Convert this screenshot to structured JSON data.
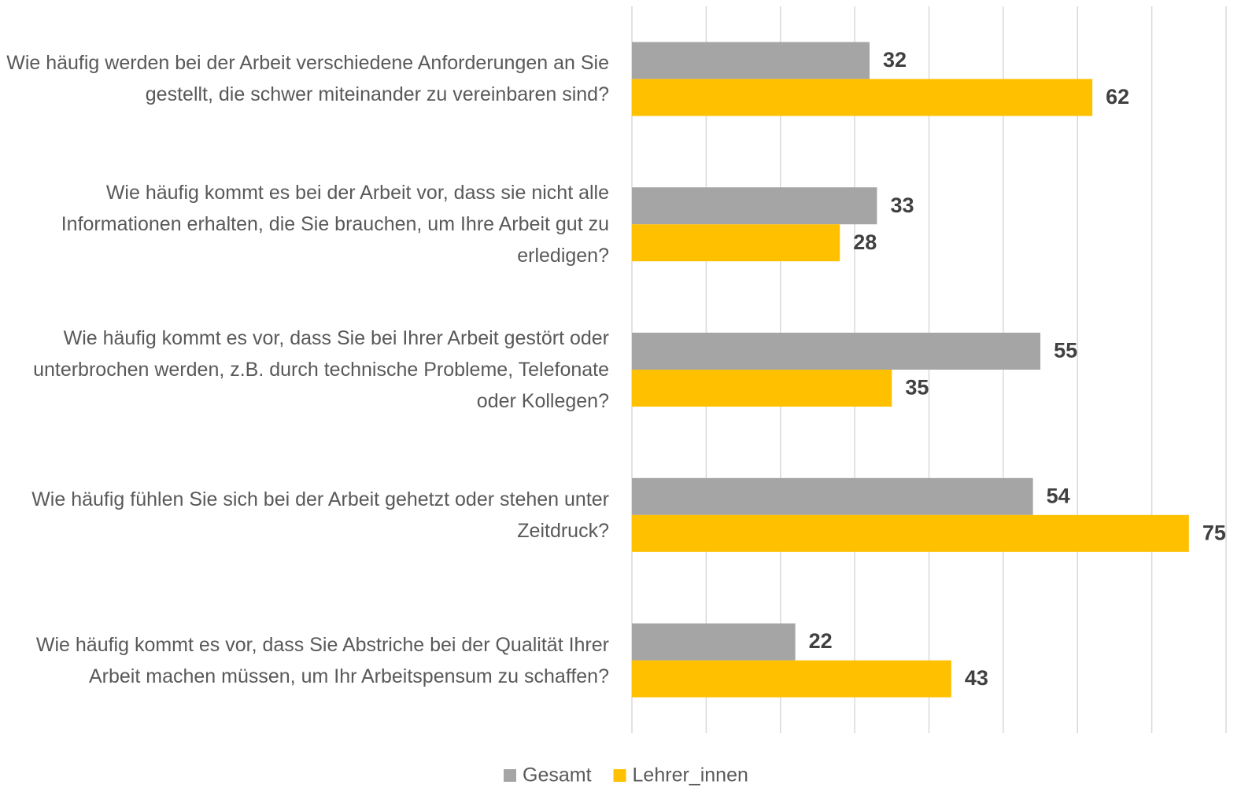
{
  "chart_data": {
    "type": "bar",
    "orientation": "horizontal",
    "categories": [
      "Wie häufig werden bei der Arbeit verschiedene Anforderungen an Sie gestellt, die schwer miteinander zu vereinbaren sind?",
      "Wie häufig kommt es bei der Arbeit vor, dass sie nicht alle Informationen erhalten, die Sie brauchen, um Ihre Arbeit gut zu erledigen?",
      "Wie häufig kommt es vor, dass Sie bei Ihrer Arbeit gestört oder unterbrochen werden, z.B. durch technische Probleme, Telefonate oder Kollegen?",
      "Wie häufig fühlen Sie sich bei der Arbeit gehetzt oder stehen unter Zeitdruck?",
      "Wie häufig kommt es vor, dass Sie Abstriche bei der Qualität Ihrer Arbeit machen müssen, um Ihr Arbeitspensum zu schaffen?"
    ],
    "series": [
      {
        "name": "Gesamt",
        "color": "#a5a5a5",
        "values": [
          32,
          33,
          55,
          54,
          22
        ]
      },
      {
        "name": "Lehrer_innen",
        "color": "#ffc000",
        "values": [
          62,
          28,
          35,
          75,
          43
        ]
      }
    ],
    "xlim": [
      0,
      80
    ],
    "xticks": [
      0,
      10,
      20,
      30,
      40,
      50,
      60,
      70,
      80
    ],
    "show_tick_labels": false,
    "grid": true,
    "legend": "bottom"
  }
}
